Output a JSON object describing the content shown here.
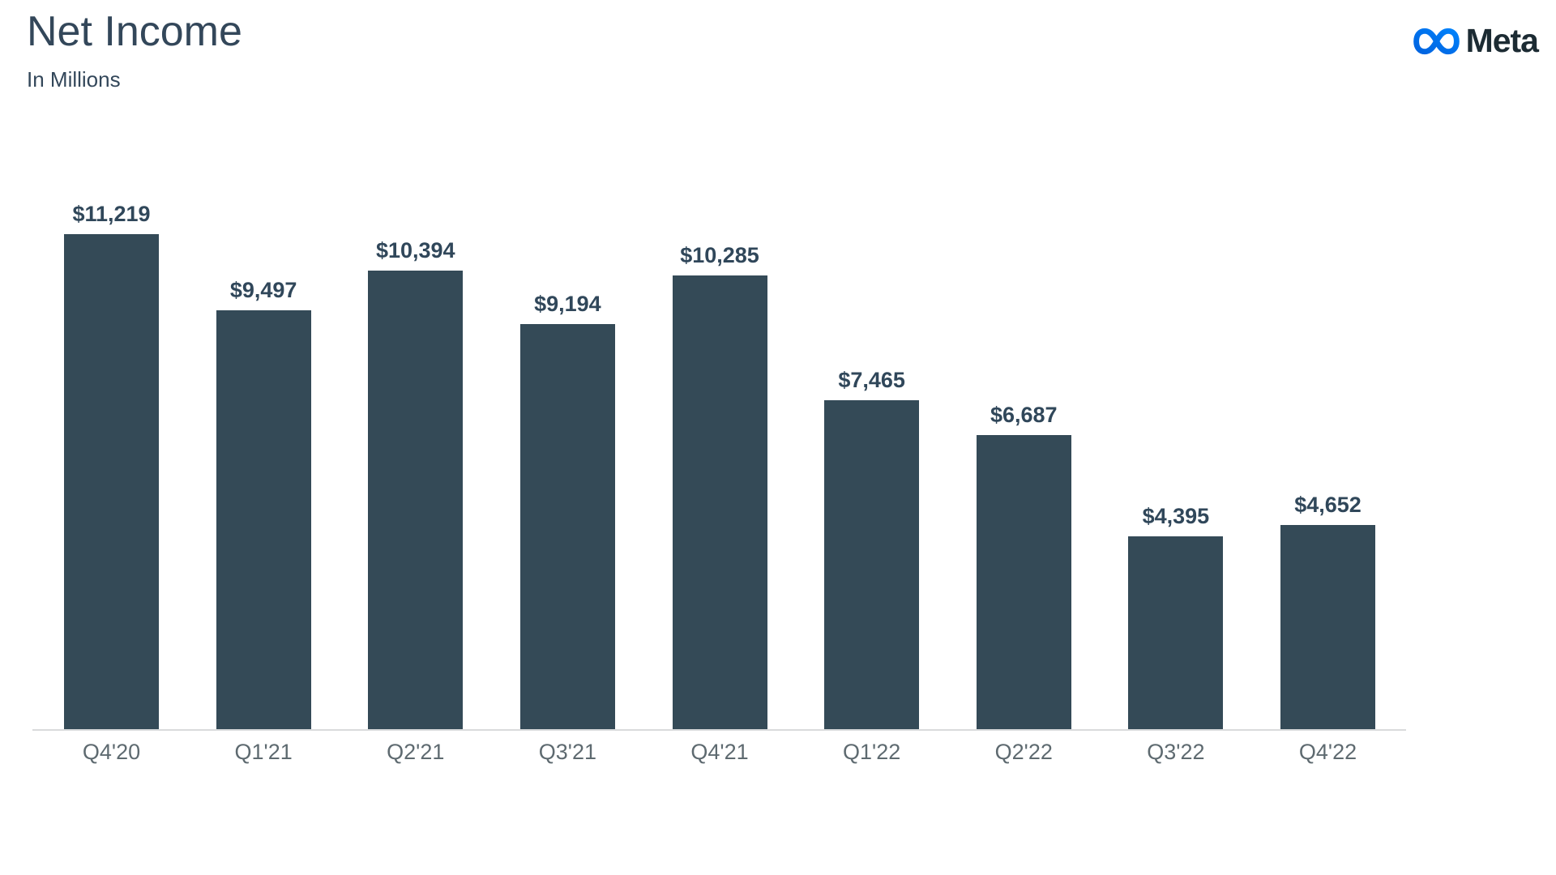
{
  "header": {
    "title": "Net Income",
    "subtitle": "In Millions"
  },
  "brand": {
    "name": "Meta",
    "logo_gradient_start": "#0064e0",
    "logo_gradient_end": "#0082fb",
    "wordmark_color": "#1c2b33"
  },
  "chart_data": {
    "type": "bar",
    "title": "Net Income",
    "subtitle": "In Millions",
    "categories": [
      "Q4'20",
      "Q1'21",
      "Q2'21",
      "Q3'21",
      "Q4'21",
      "Q1'22",
      "Q2'22",
      "Q3'22",
      "Q4'22"
    ],
    "values": [
      11219,
      9497,
      10394,
      9194,
      10285,
      7465,
      6687,
      4395,
      4652
    ],
    "value_labels": [
      "$11,219",
      "$9,497",
      "$10,394",
      "$9,194",
      "$10,285",
      "$7,465",
      "$6,687",
      "$4,395",
      "$4,652"
    ],
    "ylim": [
      0,
      11219
    ],
    "grid": false,
    "legend": "none",
    "bar_color": "#344a57",
    "value_label_color": "#30475a",
    "tick_label_color": "#5e6a70",
    "axis_line_color": "#d9dbdc"
  }
}
